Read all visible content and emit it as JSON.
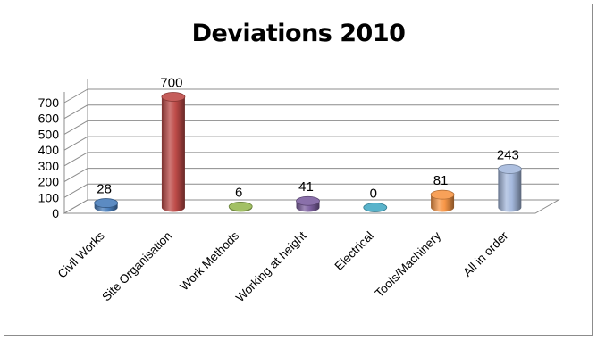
{
  "chart_data": {
    "type": "bar",
    "title": "Deviations 2010",
    "xlabel": "",
    "ylabel": "",
    "categories": [
      "Civil Works",
      "Site Organisation",
      "Work Methods",
      "Working at height",
      "Electrical",
      "Tools/Machinery",
      "All in order"
    ],
    "values": [
      28,
      700,
      6,
      41,
      0,
      81,
      243
    ],
    "data_labels": [
      "28",
      "700",
      "6",
      "41",
      "0",
      "81",
      "243"
    ],
    "ylim": [
      0,
      700
    ],
    "yticks": [
      0,
      100,
      200,
      300,
      400,
      500,
      600,
      700
    ],
    "grid": true,
    "legend": "none",
    "style": "3d-cylinder",
    "colors": [
      "#4a7ebb",
      "#be4b48",
      "#98b954",
      "#7d60a0",
      "#46aac5",
      "#f79646",
      "#a5b9dd"
    ]
  }
}
